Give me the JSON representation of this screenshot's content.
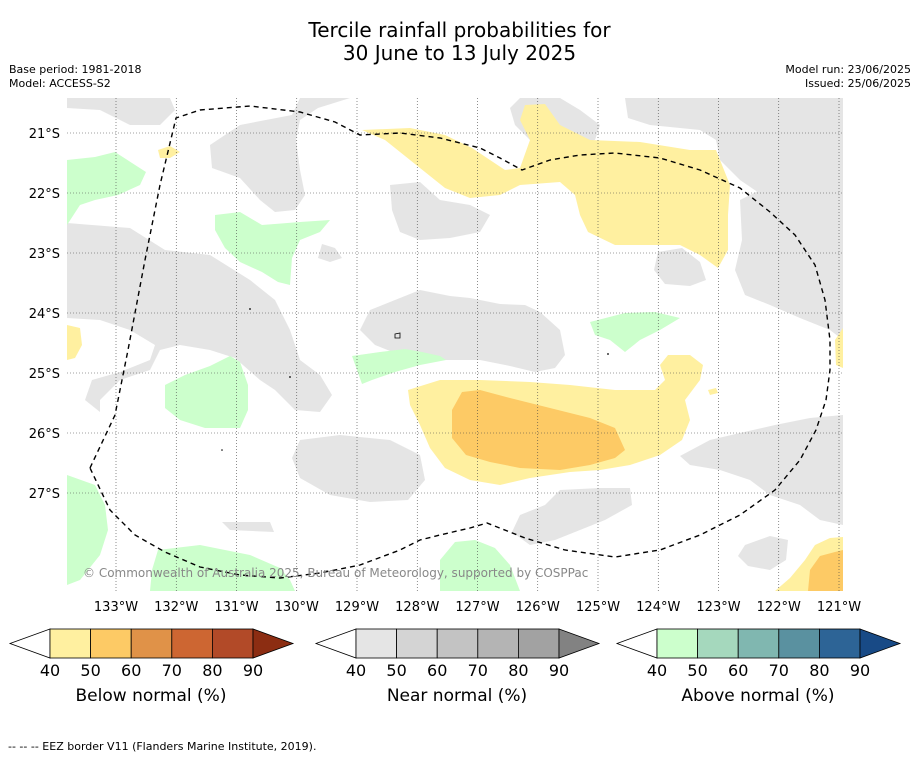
{
  "title": {
    "line1": "Tercile rainfall probabilities for",
    "line2": "30 June to 13 July 2025"
  },
  "meta_left": {
    "base_period": "Base period: 1981-2018",
    "model": "Model: ACCESS-S2"
  },
  "meta_right": {
    "model_run": "Model run: 23/06/2025",
    "issued": "Issued: 25/06/2025"
  },
  "map": {
    "lat_labels": [
      "21°S",
      "22°S",
      "23°S",
      "24°S",
      "25°S",
      "26°S",
      "27°S"
    ],
    "lon_labels": [
      "133°W",
      "132°W",
      "131°W",
      "130°W",
      "129°W",
      "128°W",
      "127°W",
      "126°W",
      "125°W",
      "124°W",
      "123°W",
      "122°W",
      "121°W"
    ],
    "copyright": "© Commonwealth of Australia 2025, Bureau of Meteorology, supported by COSPPac",
    "grid": true
  },
  "colorbars": [
    {
      "name": "Below normal (%)",
      "ticks": [
        "40",
        "50",
        "60",
        "70",
        "80",
        "90"
      ],
      "colors": [
        "#fff0a0",
        "#fdca65",
        "#e09248",
        "#cd6632",
        "#b24a28",
        "#8c2d12"
      ]
    },
    {
      "name": "Near normal (%)",
      "ticks": [
        "40",
        "50",
        "60",
        "70",
        "80",
        "90"
      ],
      "colors": [
        "#e5e5e5",
        "#d4d4d4",
        "#c3c3c3",
        "#b4b4b4",
        "#a2a2a2",
        "#828282"
      ]
    },
    {
      "name": "Above normal (%)",
      "ticks": [
        "40",
        "50",
        "60",
        "70",
        "80",
        "90"
      ],
      "colors": [
        "#ccffcc",
        "#a5d8bd",
        "#80b7b0",
        "#5a91a0",
        "#2d6496",
        "#184a86"
      ]
    }
  ],
  "footer": "-- -- -- EEZ border V11 (Flanders Marine Institute, 2019)."
}
